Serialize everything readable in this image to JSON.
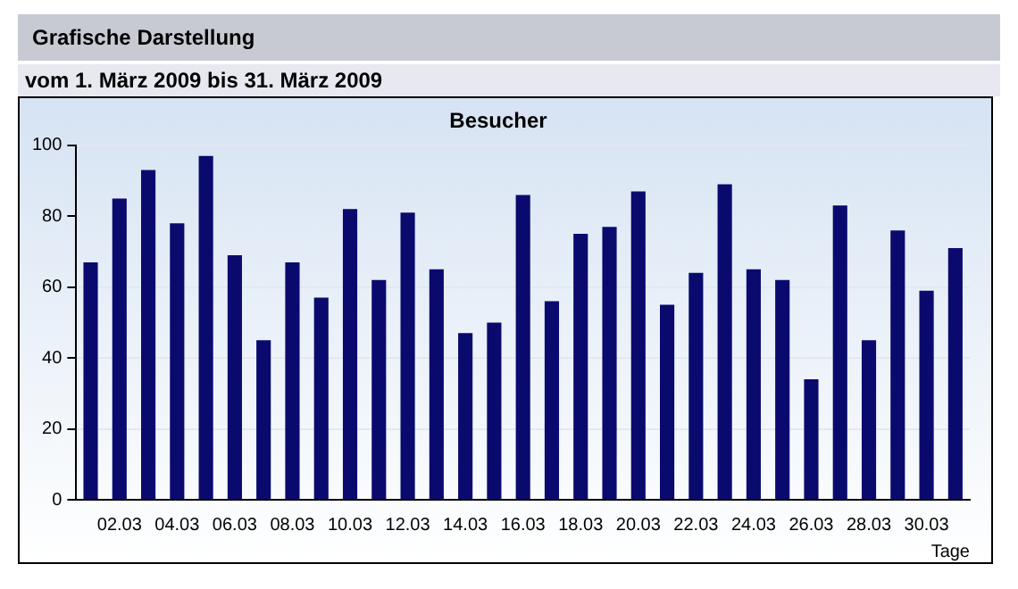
{
  "chart_data": {
    "type": "bar",
    "title": "Grafische Darstellung",
    "subtitle": "vom 1. März 2009  bis  31. März 2009",
    "annotations": [
      "Besucher"
    ],
    "xlabel": "Tage",
    "categories": [
      null,
      "02.03",
      null,
      "04.03",
      null,
      "06.03",
      null,
      "08.03",
      null,
      "10.03",
      null,
      "12.03",
      null,
      "14.03",
      null,
      "16.03",
      null,
      "18.03",
      null,
      "20.03",
      null,
      "22.03",
      null,
      "24.03",
      null,
      "26.03",
      null,
      "28.03",
      null,
      "30.03",
      null
    ],
    "values": [
      67,
      85,
      93,
      78,
      97,
      69,
      45,
      67,
      57,
      82,
      62,
      81,
      65,
      47,
      50,
      86,
      56,
      75,
      77,
      87,
      55,
      64,
      89,
      65,
      62,
      34,
      83,
      45,
      76,
      59,
      71
    ],
    "color": "#0a0a6e",
    "ylim": [
      0,
      100
    ],
    "yticks": [
      0,
      20,
      40,
      60,
      80,
      100
    ],
    "grid": "y"
  }
}
